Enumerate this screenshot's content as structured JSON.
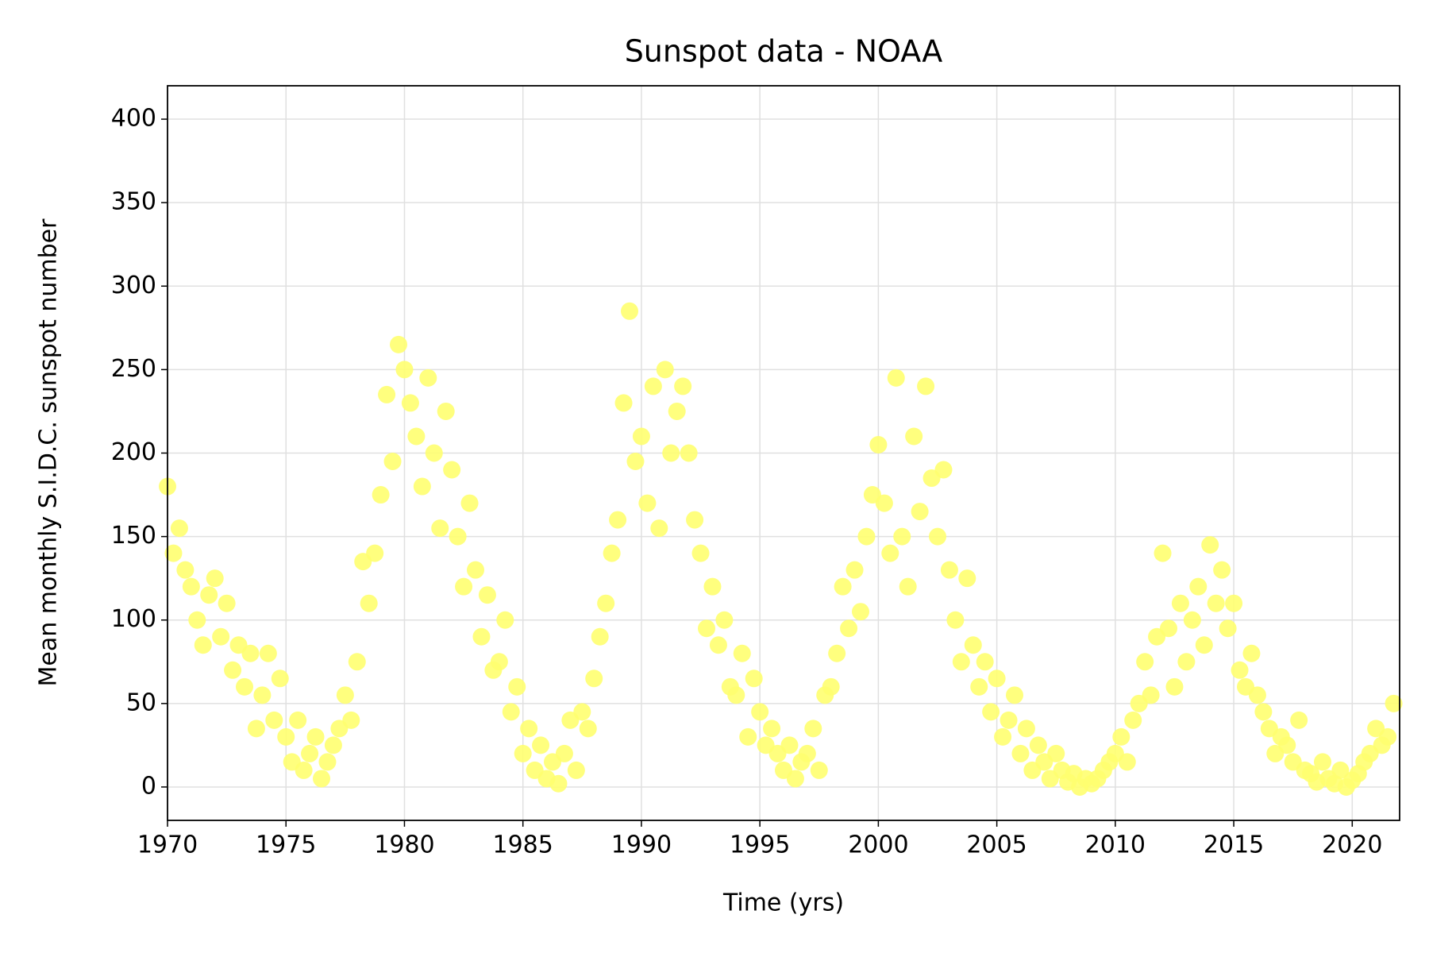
{
  "chart_data": {
    "type": "scatter",
    "title": "Sunspot data - NOAA",
    "x_label": "Time (yrs)",
    "y_label": "Mean monthly S.I.D.C. sunspot number",
    "color": "#ffff70",
    "grid": true,
    "xlim": [
      1970,
      2022
    ],
    "ylim": [
      -20,
      420
    ],
    "xticks": [
      1970,
      1975,
      1980,
      1985,
      1990,
      1995,
      2000,
      2005,
      2010,
      2015,
      2020
    ],
    "yticks": [
      0,
      50,
      100,
      150,
      200,
      250,
      300,
      350,
      400
    ],
    "x": [
      1970,
      1970.25,
      1970.5,
      1970.75,
      1971,
      1971.25,
      1971.5,
      1971.75,
      1972,
      1972.25,
      1972.5,
      1972.75,
      1973,
      1973.25,
      1973.5,
      1973.75,
      1974,
      1974.25,
      1974.5,
      1974.75,
      1975,
      1975.25,
      1975.5,
      1975.75,
      1976,
      1976.25,
      1976.5,
      1976.75,
      1977,
      1977.25,
      1977.5,
      1977.75,
      1978,
      1978.25,
      1978.5,
      1978.75,
      1979,
      1979.25,
      1979.5,
      1979.75,
      1980,
      1980.25,
      1980.5,
      1980.75,
      1981,
      1981.25,
      1981.5,
      1981.75,
      1982,
      1982.25,
      1982.5,
      1982.75,
      1983,
      1983.25,
      1983.5,
      1983.75,
      1984,
      1984.25,
      1984.5,
      1984.75,
      1985,
      1985.25,
      1985.5,
      1985.75,
      1986,
      1986.25,
      1986.5,
      1986.75,
      1987,
      1987.25,
      1987.5,
      1987.75,
      1988,
      1988.25,
      1988.5,
      1988.75,
      1989,
      1989.25,
      1989.5,
      1989.75,
      1990,
      1990.25,
      1990.5,
      1990.75,
      1991,
      1991.25,
      1991.5,
      1991.75,
      1992,
      1992.25,
      1992.5,
      1992.75,
      1993,
      1993.25,
      1993.5,
      1993.75,
      1994,
      1994.25,
      1994.5,
      1994.75,
      1995,
      1995.25,
      1995.5,
      1995.75,
      1996,
      1996.25,
      1996.5,
      1996.75,
      1997,
      1997.25,
      1997.5,
      1997.75,
      1998,
      1998.25,
      1998.5,
      1998.75,
      1999,
      1999.25,
      1999.5,
      1999.75,
      2000,
      2000.25,
      2000.5,
      2000.75,
      2001,
      2001.25,
      2001.5,
      2001.75,
      2002,
      2002.25,
      2002.5,
      2002.75,
      2003,
      2003.25,
      2003.5,
      2003.75,
      2004,
      2004.25,
      2004.5,
      2004.75,
      2005,
      2005.25,
      2005.5,
      2005.75,
      2006,
      2006.25,
      2006.5,
      2006.75,
      2007,
      2007.25,
      2007.5,
      2007.75,
      2008,
      2008.25,
      2008.5,
      2008.75,
      2009,
      2009.25,
      2009.5,
      2009.75,
      2010,
      2010.25,
      2010.5,
      2010.75,
      2011,
      2011.25,
      2011.5,
      2011.75,
      2012,
      2012.25,
      2012.5,
      2012.75,
      2013,
      2013.25,
      2013.5,
      2013.75,
      2014,
      2014.25,
      2014.5,
      2014.75,
      2015,
      2015.25,
      2015.5,
      2015.75,
      2016,
      2016.25,
      2016.5,
      2016.75,
      2017,
      2017.25,
      2017.5,
      2017.75,
      2018,
      2018.25,
      2018.5,
      2018.75,
      2019,
      2019.25,
      2019.5,
      2019.75,
      2020,
      2020.25,
      2020.5,
      2020.75,
      2021,
      2021.25,
      2021.5,
      2021.75
    ],
    "values": [
      180,
      140,
      155,
      130,
      120,
      100,
      85,
      115,
      125,
      90,
      110,
      70,
      85,
      60,
      80,
      35,
      55,
      80,
      40,
      65,
      30,
      15,
      40,
      10,
      20,
      30,
      5,
      15,
      25,
      35,
      55,
      40,
      75,
      135,
      110,
      140,
      175,
      235,
      195,
      265,
      250,
      230,
      210,
      180,
      245,
      200,
      155,
      225,
      190,
      150,
      120,
      170,
      130,
      90,
      115,
      70,
      75,
      100,
      45,
      60,
      20,
      35,
      10,
      25,
      5,
      15,
      2,
      20,
      40,
      10,
      45,
      35,
      65,
      90,
      110,
      140,
      160,
      230,
      285,
      195,
      210,
      170,
      240,
      155,
      250,
      200,
      225,
      240,
      200,
      160,
      140,
      95,
      120,
      85,
      100,
      60,
      55,
      80,
      30,
      65,
      45,
      25,
      35,
      20,
      10,
      25,
      5,
      15,
      20,
      35,
      10,
      55,
      60,
      80,
      120,
      95,
      130,
      105,
      150,
      175,
      205,
      170,
      140,
      245,
      150,
      120,
      210,
      165,
      240,
      185,
      150,
      190,
      130,
      100,
      75,
      125,
      85,
      60,
      75,
      45,
      65,
      30,
      40,
      55,
      20,
      35,
      10,
      25,
      15,
      5,
      20,
      10,
      3,
      8,
      0,
      5,
      2,
      5,
      10,
      15,
      20,
      30,
      15,
      40,
      50,
      75,
      55,
      90,
      140,
      95,
      60,
      110,
      75,
      100,
      120,
      85,
      145,
      110,
      130,
      95,
      110,
      70,
      60,
      80,
      55,
      45,
      35,
      20,
      30,
      25,
      15,
      40,
      10,
      8,
      3,
      15,
      5,
      2,
      10,
      0,
      4,
      8,
      15,
      20,
      35,
      25,
      30,
      50
    ]
  }
}
